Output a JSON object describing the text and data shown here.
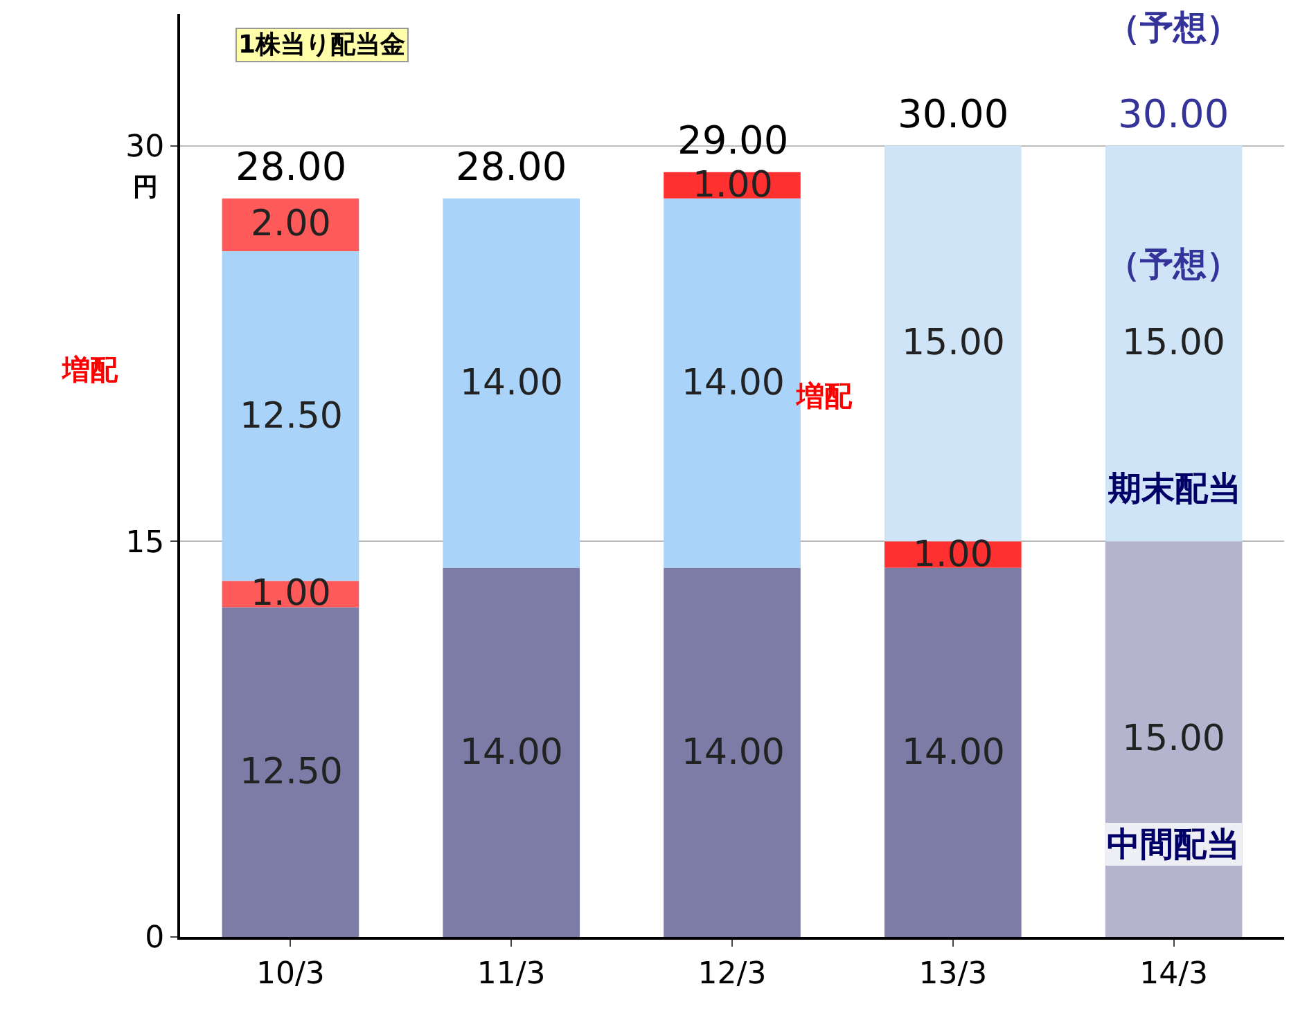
{
  "chart_data": {
    "type": "bar",
    "stacked": true,
    "categories": [
      "10/3",
      "11/3",
      "12/3",
      "13/3",
      "14/3"
    ],
    "series": [
      {
        "colors": [
          "#7c7ca6",
          "#7c7ca6",
          "#7c7ca6",
          "#7c7ca6",
          "#b4b4ce"
        ],
        "values": [
          12.5,
          14.0,
          14.0,
          14.0,
          15.0
        ],
        "value_labels": [
          "12.50",
          "14.00",
          "14.00",
          "14.00",
          "15.00"
        ]
      },
      {
        "colors": [
          "#ff5a5a",
          "#ff5a5a",
          "#ff5a5a",
          "#ff3030",
          "#ff5a5a"
        ],
        "values": [
          1.0,
          null,
          null,
          1.0,
          null
        ],
        "value_labels": [
          "1.00",
          null,
          null,
          "1.00",
          null
        ]
      },
      {
        "colors": [
          "#a9d3f8",
          "#a9d3f8",
          "#a9d3f8",
          "#cfe4f7",
          "#cfe4f7"
        ],
        "values": [
          12.5,
          14.0,
          14.0,
          15.0,
          15.0
        ],
        "value_labels": [
          "12.50",
          "14.00",
          "14.00",
          "15.00",
          "15.00"
        ]
      },
      {
        "colors": [
          "#ff5a5a",
          "#ff5a5a",
          "#ff3030",
          "#ff5a5a",
          "#ff5a5a"
        ],
        "values": [
          2.0,
          null,
          1.0,
          null,
          null
        ],
        "value_labels": [
          "2.00",
          null,
          "1.00",
          null,
          null
        ]
      }
    ],
    "totals": [
      "28.00",
      "28.00",
      "29.00",
      "30.00",
      "30.00"
    ],
    "ylim": [
      0,
      35
    ],
    "yticks": [
      0,
      15,
      30
    ],
    "ylabel": "円",
    "grid": "y",
    "annotations": [
      "1株当り配当金",
      "増配",
      "増配",
      "（予想）",
      "（予想）",
      "期末配当",
      "中間配当"
    ]
  }
}
